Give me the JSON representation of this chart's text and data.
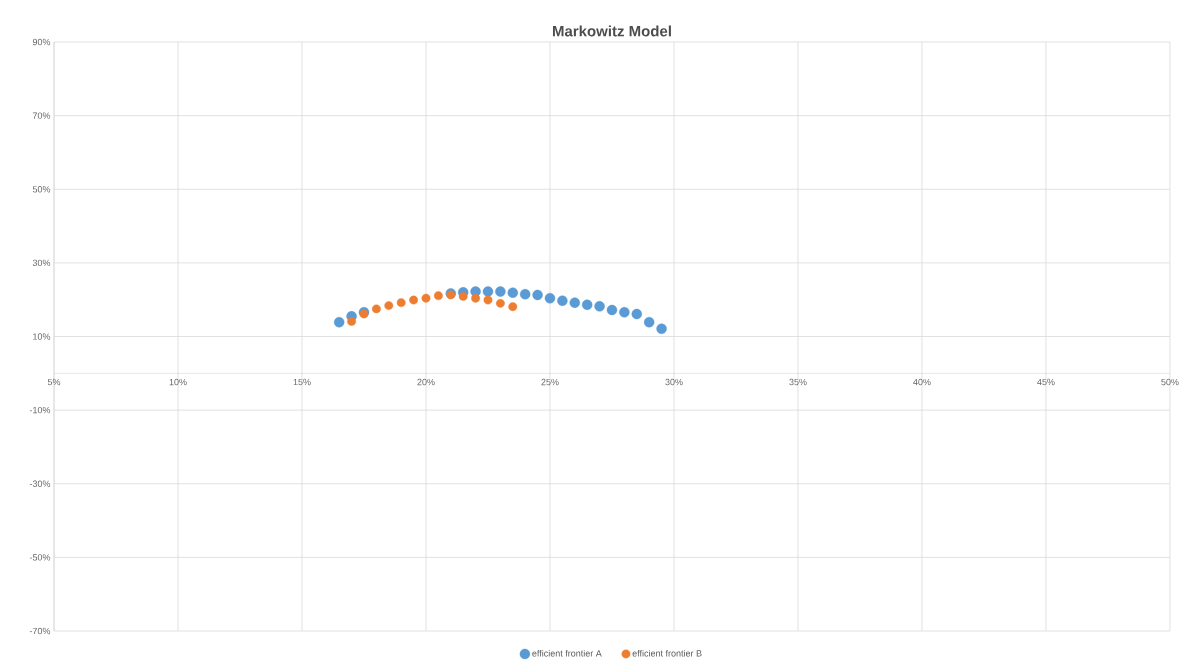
{
  "chart_data": {
    "type": "scatter",
    "title": "Markowitz Model",
    "x": [
      16.5,
      17,
      17.5,
      18,
      18.5,
      19,
      19.5,
      20,
      20.5,
      21,
      21.5,
      22,
      22.5,
      23,
      23.5,
      24,
      24.5,
      25,
      25.5,
      26,
      26.5,
      27,
      27.5,
      28,
      28.5,
      29,
      29.5
    ],
    "series": [
      {
        "name": "efficient frontier A",
        "color": "#5b9bd5",
        "values": [
          13.9,
          15.5,
          16.6,
          null,
          null,
          null,
          null,
          null,
          null,
          21.7,
          22.0,
          22.2,
          22.2,
          22.2,
          21.9,
          21.5,
          21.3,
          20.4,
          19.7,
          19.2,
          18.6,
          18.2,
          17.2,
          16.6,
          16.1,
          13.9,
          12.1
        ]
      },
      {
        "name": "efficient frontier B",
        "color": "#ed7d31",
        "x": [
          17,
          17.5,
          18,
          18.5,
          19,
          19.5,
          20,
          20.5,
          21,
          21.5,
          22,
          22.5,
          23,
          23.5
        ],
        "values": [
          14.1,
          16.1,
          17.5,
          18.4,
          19.2,
          19.9,
          20.4,
          21.1,
          21.3,
          20.9,
          20.4,
          19.9,
          19.0,
          18.1
        ]
      }
    ],
    "xlim": [
      5,
      50
    ],
    "xticks": [
      {
        "value": 5,
        "label": "5%"
      },
      {
        "value": 10,
        "label": "10%"
      },
      {
        "value": 15,
        "label": "15%"
      },
      {
        "value": 20,
        "label": "20%"
      },
      {
        "value": 25,
        "label": "25%"
      },
      {
        "value": 30,
        "label": "30%"
      },
      {
        "value": 35,
        "label": "35%"
      },
      {
        "value": 40,
        "label": "40%"
      },
      {
        "value": 45,
        "label": "45%"
      },
      {
        "value": 50,
        "label": "50%"
      }
    ],
    "ylim": [
      -70,
      90
    ],
    "yticks": [
      {
        "value": -70,
        "label": "-70%"
      },
      {
        "value": -50,
        "label": "-50%"
      },
      {
        "value": -30,
        "label": "-30%"
      },
      {
        "value": -10,
        "label": "-10%"
      },
      {
        "value": 10,
        "label": "10%"
      },
      {
        "value": 30,
        "label": "30%"
      },
      {
        "value": 50,
        "label": "50%"
      },
      {
        "value": 70,
        "label": "70%"
      },
      {
        "value": 90,
        "label": "90%"
      }
    ],
    "grid": true,
    "legend": "bottom",
    "marker": "circle"
  }
}
